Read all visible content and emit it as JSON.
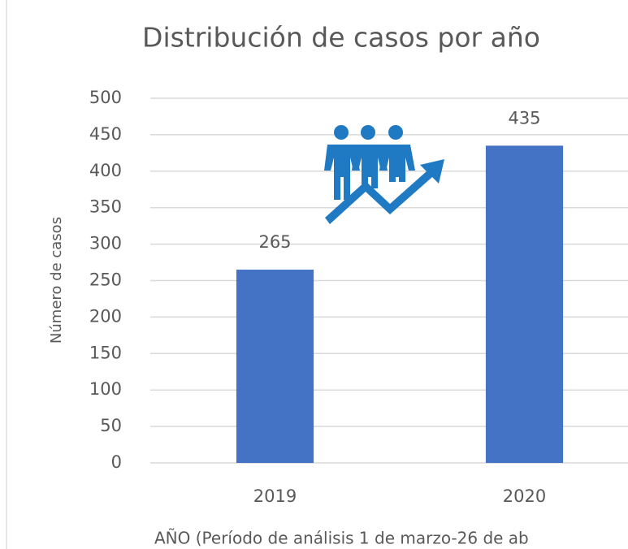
{
  "chart_data": {
    "type": "bar",
    "title": "Distribución de casos por año",
    "categories": [
      "2019",
      "2020"
    ],
    "values": [
      265,
      435
    ],
    "color": "#4472c4",
    "y_label": "Número de casos",
    "x_label": "AÑO (Período de análisis 1 de marzo-26 de ab",
    "ylim": [
      0,
      500
    ],
    "yticks": [
      0,
      50,
      100,
      150,
      200,
      250,
      300,
      350,
      400,
      450,
      500
    ],
    "grid": true
  }
}
